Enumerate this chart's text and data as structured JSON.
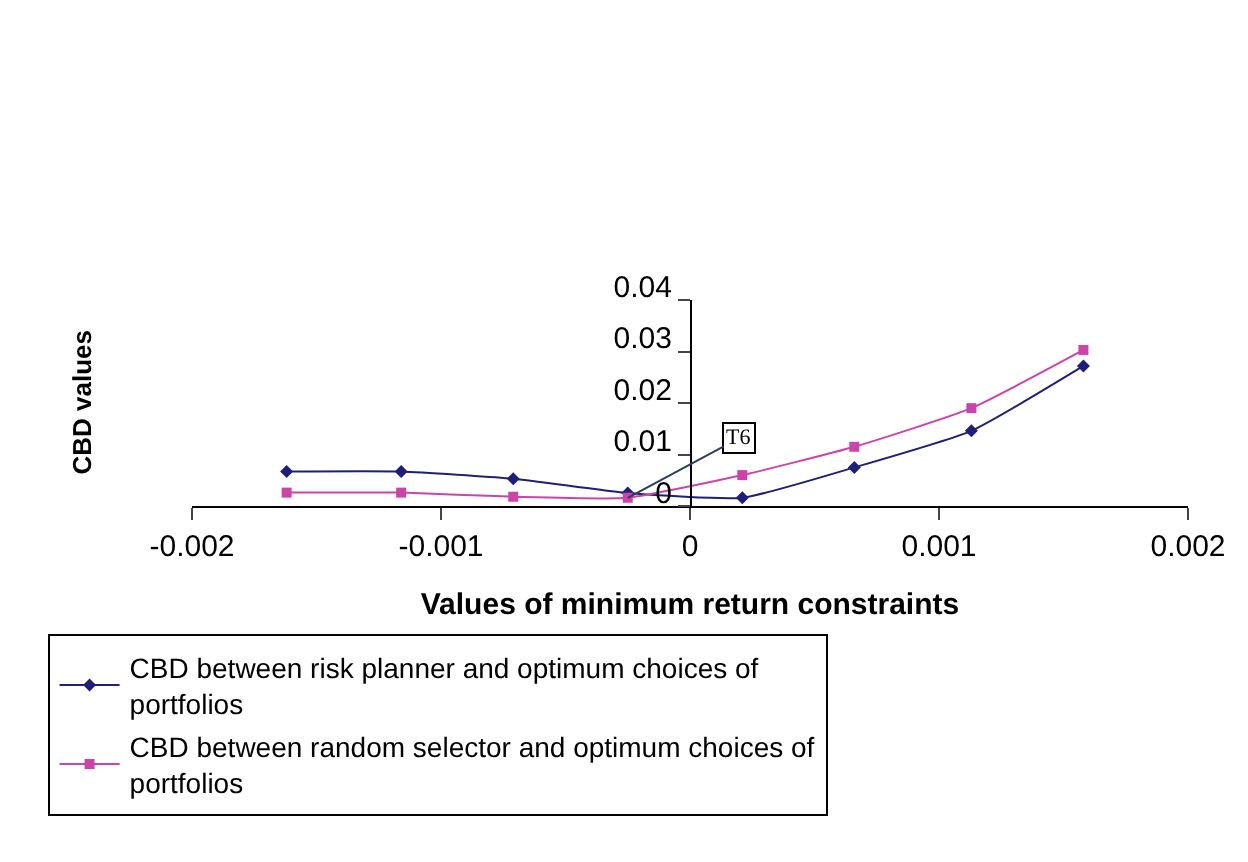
{
  "chart_data": {
    "type": "line",
    "xlabel": "Values of minimum return constraints",
    "ylabel": "CBD values",
    "x": [
      -0.00162,
      -0.00116,
      -0.00071,
      -0.00025,
      0.00021,
      0.00066,
      0.00113,
      0.00158
    ],
    "series": [
      {
        "name": "CBD between risk planner and optimum choices of portfolios",
        "color": "#1f1f7a",
        "marker": "diamond",
        "values": [
          0.0067,
          0.0067,
          0.0053,
          0.0025,
          0.0016,
          0.0075,
          0.0146,
          0.0272
        ]
      },
      {
        "name": "CBD between random selector and optimum choices of portfolios",
        "color": "#cc44aa",
        "marker": "square",
        "values": [
          0.0026,
          0.0026,
          0.0018,
          0.0016,
          0.006,
          0.0115,
          0.019,
          0.0303
        ]
      }
    ],
    "xlim": [
      -0.002,
      0.002
    ],
    "xticks": [
      -0.002,
      -0.001,
      0,
      0.001,
      0.002
    ],
    "ylim": [
      0,
      0.04
    ],
    "yticks": [
      0,
      0.01,
      0.02,
      0.03,
      0.04
    ],
    "annotations": [
      {
        "text": "T6",
        "x": -0.00025,
        "y": 0.0016
      }
    ],
    "legend": "bottom",
    "line_style": "solid"
  }
}
